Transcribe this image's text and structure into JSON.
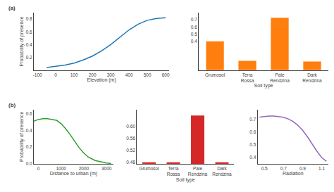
{
  "chart_data": [
    {
      "type": "line",
      "title": "(a)",
      "x": [
        -50,
        0,
        50,
        100,
        150,
        200,
        250,
        300,
        350,
        400,
        450,
        500,
        550,
        600
      ],
      "values": [
        0.04,
        0.06,
        0.08,
        0.11,
        0.16,
        0.22,
        0.3,
        0.4,
        0.52,
        0.63,
        0.72,
        0.78,
        0.81,
        0.82
      ],
      "xlabel": "Elevation (m)",
      "ylabel": "Probability of presence",
      "xlim": [
        -120,
        620
      ],
      "ylim": [
        0,
        0.9
      ],
      "xticks": [
        -100,
        0,
        100,
        200,
        300,
        400,
        500,
        600
      ],
      "yticks": [
        0.2,
        0.4,
        0.6,
        0.8
      ],
      "grid": false
    },
    {
      "type": "bar",
      "categories": [
        "Grumosol",
        "Terra\nRossa",
        "Pale\nRendzina",
        "Dark\nRendzina"
      ],
      "values": [
        0.4,
        0.13,
        0.73,
        0.12
      ],
      "xlabel": "Soil type",
      "ylim": [
        0.0,
        0.8
      ],
      "yticks": [
        0.4,
        0.5,
        0.6,
        0.7
      ],
      "grid": false
    },
    {
      "type": "line",
      "title": "(b)",
      "x": [
        -200,
        0,
        200,
        400,
        600,
        800,
        1000,
        1200,
        1400,
        1600,
        1800,
        2000,
        2200,
        2500,
        2800,
        3000,
        3200
      ],
      "values": [
        0.51,
        0.53,
        0.54,
        0.54,
        0.53,
        0.52,
        0.48,
        0.42,
        0.35,
        0.27,
        0.19,
        0.13,
        0.08,
        0.04,
        0.02,
        0.01,
        0.005
      ],
      "xlabel": "Distance to urban (m)",
      "ylabel": "Probability of presence",
      "xlim": [
        -200,
        3300
      ],
      "ylim": [
        0,
        0.65
      ],
      "xticks": [
        0,
        1000,
        2000,
        3000
      ],
      "yticks": [
        {
          "value": 0,
          "label": "0.0"
        },
        0.2,
        0.4,
        0.6
      ],
      "grid": false
    },
    {
      "type": "bar",
      "categories": [
        "Grumosol",
        "Terra\nRossa",
        "Pale\nRendzina",
        "Dark\nRendzina"
      ],
      "values": [
        0.48,
        0.48,
        0.635,
        0.48
      ],
      "xlabel": "Soil type",
      "ylim": [
        0.475,
        0.655
      ],
      "yticks": [
        0.48,
        0.52,
        0.56,
        {
          "value": 0.6,
          "label": "0.60"
        }
      ],
      "grid": false
    },
    {
      "type": "line",
      "x": [
        0.45,
        0.5,
        0.55,
        0.6,
        0.65,
        0.7,
        0.75,
        0.8,
        0.85,
        0.9,
        0.95,
        1.0,
        1.05,
        1.1,
        1.15
      ],
      "values": [
        0.72,
        0.725,
        0.728,
        0.728,
        0.725,
        0.718,
        0.705,
        0.685,
        0.655,
        0.615,
        0.565,
        0.505,
        0.45,
        0.4,
        0.37
      ],
      "xlabel": "Radiation",
      "xlim": [
        0.43,
        1.17
      ],
      "ylim": [
        0.35,
        0.78
      ],
      "xticks": [
        0.5,
        0.7,
        0.9,
        1.1
      ],
      "yticks": [
        0.4,
        0.5,
        0.6,
        0.7
      ],
      "grid": false
    }
  ]
}
